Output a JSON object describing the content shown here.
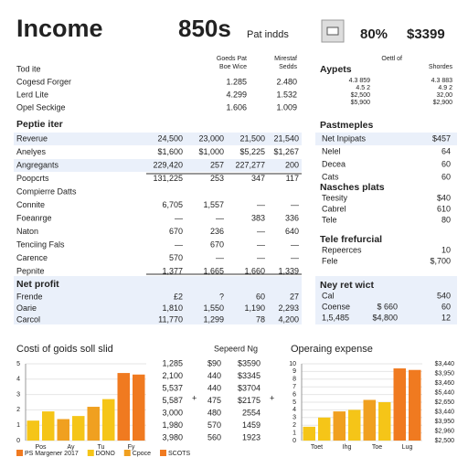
{
  "header": {
    "title": "Income",
    "figure": "850s",
    "subtitle": "Pat indds",
    "percent": "80%",
    "amount": "$3399"
  },
  "left_top": {
    "col_headers": [
      "Goeds Pat",
      "Mirestaf"
    ],
    "col_subheaders": [
      "Boe Wice",
      "Sedds"
    ],
    "rows": [
      [
        "Tod ite",
        "",
        ""
      ],
      [
        "Cogesd Forger",
        "1.285",
        "2.480"
      ],
      [
        "Lerd Lite",
        "4.299",
        "1.532"
      ],
      [
        "Opel Seckige",
        "1.606",
        "1.009"
      ]
    ]
  },
  "left_main": {
    "title": "Peptie iter",
    "rows": [
      [
        "Reverue",
        "24,500",
        "23,000",
        "21,500",
        "21,540"
      ],
      [
        "Anelyes",
        "$1,600",
        "$1,000",
        "$5,225",
        "$1,267"
      ],
      [
        "Angregants",
        "229,420",
        "257",
        "227,277",
        "200"
      ],
      [
        "Poopcrts",
        "131,225",
        "253",
        "347",
        "117"
      ],
      [
        "Compierre Datts",
        "",
        "",
        "",
        ""
      ],
      [
        "Connite",
        "6,705",
        "1,557",
        "—",
        "—"
      ],
      [
        "Foeanrge",
        "—",
        "—",
        "383",
        "336"
      ],
      [
        "Naton",
        "670",
        "236",
        "—",
        "640"
      ],
      [
        "Tenciing Fals",
        "—",
        "670",
        "—",
        "—"
      ],
      [
        "Carence",
        "570",
        "—",
        "—",
        "—"
      ],
      [
        "Pepnite",
        "1,377",
        "1,665",
        "1,660",
        "1,339"
      ]
    ]
  },
  "left_profit": {
    "title": "Net profit",
    "rows": [
      [
        "Frende",
        "£2",
        "?",
        "60",
        "27"
      ],
      [
        "Oarie",
        "1,810",
        "1,550",
        "1,190",
        "2,293"
      ],
      [
        "Carcol",
        "11,770",
        "1,299",
        "78",
        "4,200"
      ]
    ]
  },
  "right_top": {
    "title": "Aypets",
    "col_headers": [
      "Oettl of",
      "Shordes"
    ],
    "rows": [
      [
        "4.3 859",
        "4.3 883"
      ],
      [
        "4.5 2",
        "4.9 2"
      ],
      [
        "$2,500",
        "32,00"
      ],
      [
        "$5,900",
        "$2,900"
      ]
    ]
  },
  "right_sections": [
    {
      "title": "Pastmeples",
      "rows": [
        [
          "Net Inpipats",
          "$457"
        ],
        [
          "Nelel",
          "64"
        ],
        [
          "Decea",
          "60"
        ],
        [
          "Cats",
          "60"
        ]
      ]
    },
    {
      "title": "Nasches plats",
      "rows": [
        [
          "Teesity",
          "$40"
        ],
        [
          "Cabrel",
          "610"
        ],
        [
          "Tele",
          "80"
        ]
      ]
    },
    {
      "title": "Tele frefurcial",
      "rows": [
        [
          "Repeerces",
          "10"
        ],
        [
          "Fele",
          "$,700"
        ]
      ]
    },
    {
      "title": "Ney ret wict",
      "rows": [
        [
          "Cal",
          "",
          "540"
        ],
        [
          "Coense",
          "$ 660",
          "60"
        ],
        [
          "1,5,485",
          "$4,800",
          "12"
        ]
      ]
    }
  ],
  "middle_table": {
    "title": "Sepeerd Ng",
    "rows": [
      [
        "1,285",
        "$90",
        "$3590"
      ],
      [
        "2,100",
        "440",
        "$3345"
      ],
      [
        "5,537",
        "440",
        "$3704"
      ],
      [
        "5,587",
        "475",
        "$2175"
      ],
      [
        "3,000",
        "480",
        "2554"
      ],
      [
        "1,980",
        "570",
        "1459"
      ],
      [
        "3,980",
        "560",
        "1923"
      ]
    ]
  },
  "charts": [
    {
      "type": "bar",
      "title": "Costi of goids soll slid",
      "categories": [
        "Pos",
        "",
        "Ay",
        "",
        "Tu",
        "",
        "Fy",
        ""
      ],
      "values": [
        1.3,
        1.9,
        1.4,
        1.6,
        2.2,
        2.7,
        4.4,
        4.3
      ],
      "colors": [
        "#f5c518",
        "#f5c518",
        "#f0a020",
        "#f5c518",
        "#f0a020",
        "#f5c518",
        "#f07a20",
        "#f07a20"
      ],
      "ylim": [
        0,
        5
      ],
      "yticks": [
        0,
        1,
        2,
        3,
        4,
        5
      ]
    },
    {
      "type": "bar",
      "title": "Operaing expense",
      "categories": [
        "Toet",
        "",
        "Ihg",
        "",
        "Toe",
        "",
        "Lug",
        ""
      ],
      "values": [
        1.8,
        3,
        3.8,
        4,
        5.3,
        5,
        9.4,
        9.2
      ],
      "colors": [
        "#f5c518",
        "#f5c518",
        "#f0a020",
        "#f5c518",
        "#f0a020",
        "#f5c518",
        "#f07a20",
        "#f07a20"
      ],
      "ylim": [
        0,
        10
      ],
      "yticks": [
        0,
        1,
        2,
        3,
        4,
        5,
        6,
        7,
        8,
        9,
        10
      ],
      "right_labels": [
        "$3,440",
        "$3,950",
        "$3,460",
        "$5,440",
        "$2,650",
        "$3,440",
        "$3,950",
        "$2,960",
        "$2,500"
      ]
    }
  ],
  "legend": [
    {
      "name": "PS Margener 2017",
      "color": "#f07a20"
    },
    {
      "name": "DONO",
      "color": "#f5c518"
    },
    {
      "name": "Cpoce",
      "color": "#f0a020"
    },
    {
      "name": "SCOTS",
      "color": "#f07a20"
    }
  ]
}
